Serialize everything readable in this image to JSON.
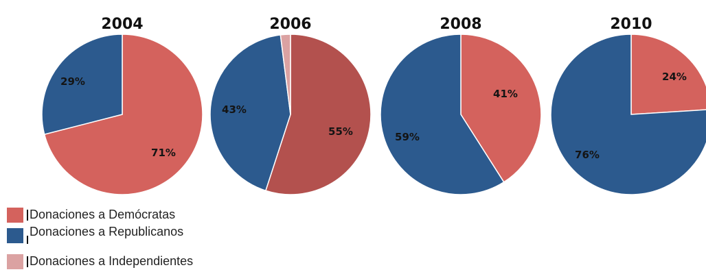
{
  "chart_data": [
    {
      "type": "pie",
      "title": "2004",
      "slices": [
        {
          "name": "Donaciones a Demócratas",
          "value": 71,
          "label": "71%"
        },
        {
          "name": "Donaciones a Republicanos",
          "value": 29,
          "label": "29%"
        }
      ]
    },
    {
      "type": "pie",
      "title": "2006",
      "slices": [
        {
          "name": "Donaciones a Demócratas",
          "value": 55,
          "label": "55%"
        },
        {
          "name": "Donaciones a Republicanos",
          "value": 43,
          "label": "43%"
        },
        {
          "name": "Donaciones a Independientes",
          "value": 2,
          "label": ""
        }
      ]
    },
    {
      "type": "pie",
      "title": "2008",
      "slices": [
        {
          "name": "Donaciones a Demócratas",
          "value": 41,
          "label": "41%"
        },
        {
          "name": "Donaciones a Republicanos",
          "value": 59,
          "label": "59%"
        }
      ]
    },
    {
      "type": "pie",
      "title": "2010",
      "slices": [
        {
          "name": "Donaciones a Demócratas",
          "value": 24,
          "label": "24%"
        },
        {
          "name": "Donaciones a Republicanos",
          "value": 76,
          "label": "76%"
        }
      ]
    }
  ],
  "colors": {
    "democratas": "#d4625d",
    "democratas_2006": "#b3514e",
    "republicanos": "#2c5a8e",
    "independientes": "#dba2a2"
  },
  "legend": {
    "items": [
      {
        "label": "Donaciones a Demócratas",
        "color_key": "democratas"
      },
      {
        "label": "Donaciones a Republicanos",
        "color_key": "republicanos"
      },
      {
        "label": "Donaciones a Independientes",
        "color_key": "independientes"
      }
    ]
  }
}
